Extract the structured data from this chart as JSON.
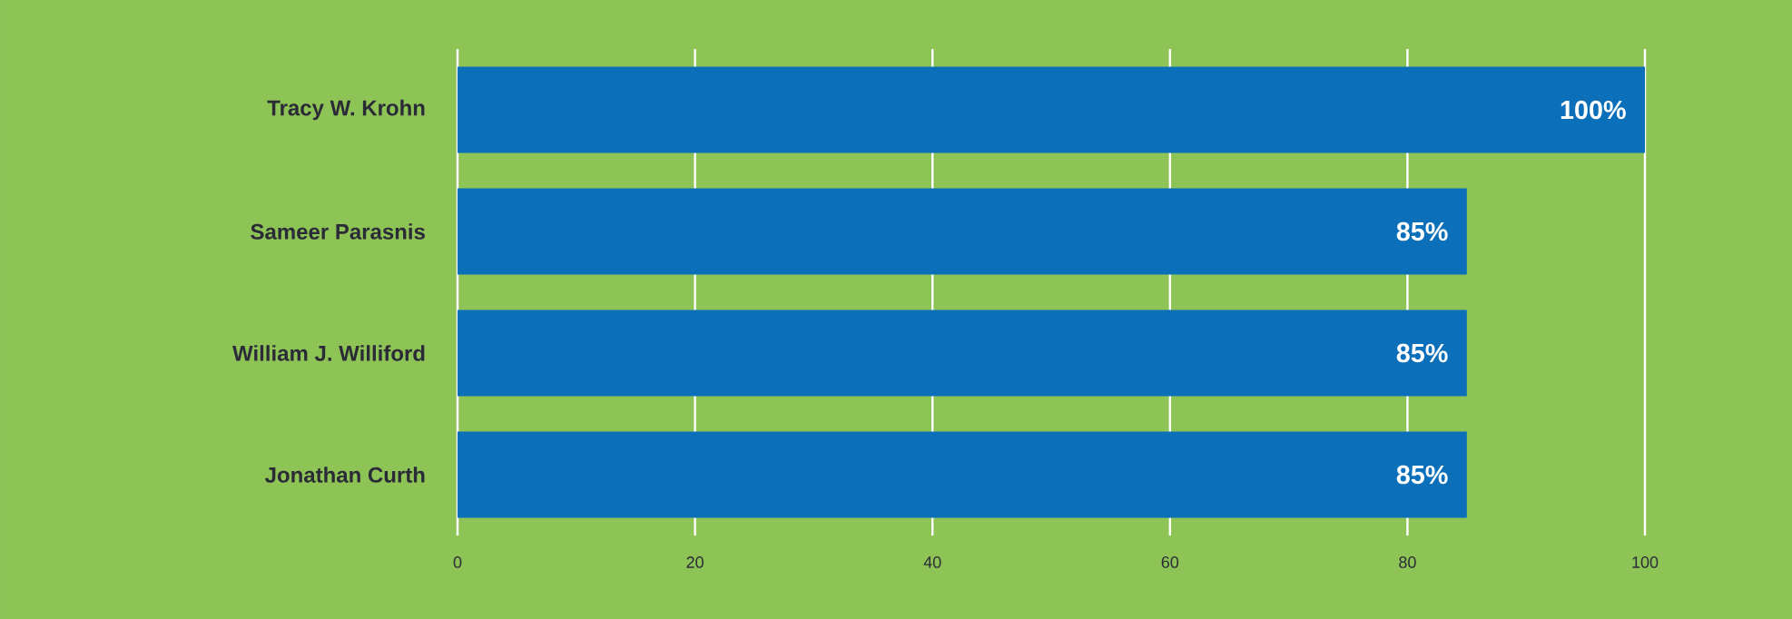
{
  "chart_data": {
    "type": "bar",
    "orientation": "horizontal",
    "categories": [
      "Tracy W. Krohn",
      "Sameer Parasnis",
      "William J. Williford",
      "Jonathan Curth"
    ],
    "values": [
      100,
      85,
      85,
      85
    ],
    "value_labels": [
      "100%",
      "85%",
      "85%",
      "85%"
    ],
    "color": "#0b6fba",
    "xlim": [
      0,
      100
    ],
    "xticks": [
      0,
      20,
      40,
      60,
      80,
      100
    ],
    "grid": "x"
  }
}
